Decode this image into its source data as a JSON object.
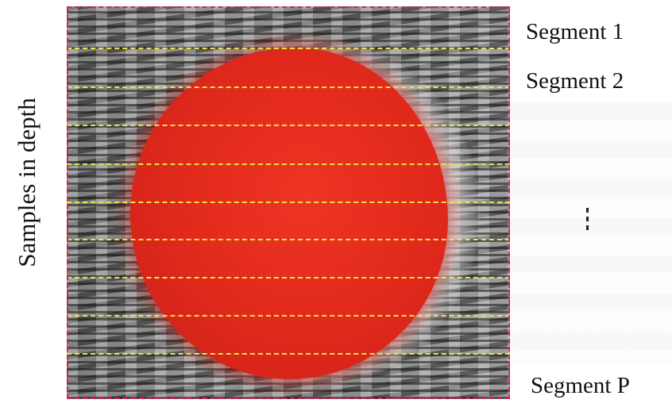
{
  "y_axis_label": "Samples in depth",
  "segments": {
    "first": "Segment 1",
    "second": "Segment 2",
    "last": "Segment P"
  },
  "colors": {
    "lesion": "#e32b1c",
    "segment_lines": "#e8e34a",
    "frame_border": "#d8214f"
  },
  "icons": {
    "ellipsis": "vertical-ellipsis-icon"
  }
}
